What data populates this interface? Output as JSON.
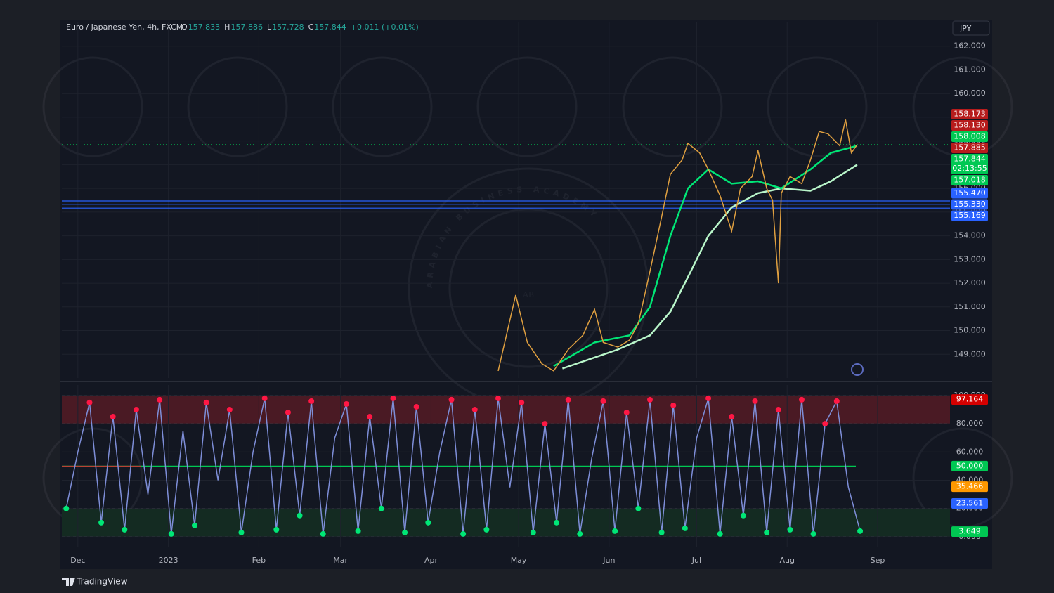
{
  "header": {
    "symbol": "Euro / Japanese Yen, 4h, FXCM",
    "ohlc": [
      {
        "key": "O",
        "value": "157.833"
      },
      {
        "key": "H",
        "value": "157.886"
      },
      {
        "key": "L",
        "value": "157.728"
      },
      {
        "key": "C",
        "value": "157.844"
      }
    ],
    "change": "+0.011 (+0.01%)",
    "currency": "JPY"
  },
  "footer": "TradingView",
  "watermark": {
    "name": "ARABIAN BUSINESS ACADEMY",
    "initials": "AB"
  },
  "chart_data": [
    {
      "type": "line",
      "x": [
        144,
        150,
        154,
        159,
        163,
        168,
        173,
        177,
        180,
        185,
        189,
        192,
        196,
        200,
        203,
        207,
        209,
        213,
        216,
        220,
        224,
        227,
        231,
        233,
        236,
        238,
        240,
        241,
        244,
        248,
        251,
        254,
        257,
        261,
        263,
        265,
        267
      ],
      "series": [
        {
          "color": "#e0a040",
          "values": [
            148.3,
            151.5,
            149.5,
            148.6,
            148.3,
            149.2,
            149.8,
            150.9,
            149.5,
            149.3,
            149.6,
            150.3,
            152.5,
            154.8,
            156.6,
            157.2,
            157.9,
            157.5,
            156.8,
            155.7,
            154.2,
            156.0,
            156.5,
            157.6,
            156.0,
            155.5,
            152.0,
            155.8,
            156.5,
            156.2,
            157.2,
            158.4,
            158.3,
            157.8,
            158.9,
            157.5,
            157.844
          ]
        }
      ],
      "ma": [
        {
          "color": "#b9f6ca",
          "x": [
            166,
            185,
            196,
            203,
            210,
            216,
            224,
            233,
            241,
            251,
            258,
            267
          ],
          "values": [
            148.4,
            149.2,
            149.8,
            150.8,
            152.5,
            154.0,
            155.2,
            155.8,
            156.0,
            155.9,
            156.3,
            157.0
          ]
        },
        {
          "color": "#00e676",
          "x": [
            163,
            177,
            189,
            196,
            203,
            209,
            216,
            224,
            233,
            241,
            251,
            258,
            267
          ],
          "values": [
            148.5,
            149.5,
            149.8,
            151.0,
            154.0,
            156.0,
            156.8,
            156.2,
            156.3,
            156.0,
            156.8,
            157.5,
            157.8
          ]
        }
      ],
      "xlim": [
        -5.5,
        298.8
      ],
      "xticks": [
        {
          "value": 0,
          "label": "Dec"
        },
        {
          "value": 31,
          "label": "2023"
        },
        {
          "value": 62,
          "label": "Feb"
        },
        {
          "value": 90,
          "label": "Mar"
        },
        {
          "value": 121,
          "label": "Apr"
        },
        {
          "value": 151,
          "label": "May"
        },
        {
          "value": 182,
          "label": "Jun"
        },
        {
          "value": 212,
          "label": "Jul"
        },
        {
          "value": 243,
          "label": "Aug"
        },
        {
          "value": 274,
          "label": "Sep"
        }
      ],
      "ylim": [
        148,
        163
      ],
      "yticks": [
        {
          "value": 149,
          "label": "149.000"
        },
        {
          "value": 150,
          "label": "150.000"
        },
        {
          "value": 151,
          "label": "151.000"
        },
        {
          "value": 152,
          "label": "152.000"
        },
        {
          "value": 153,
          "label": "153.000"
        },
        {
          "value": 154,
          "label": "154.000"
        },
        {
          "value": 155,
          "label": "155.000"
        },
        {
          "value": 156,
          "label": "156.000"
        },
        {
          "value": 157,
          "label": "157.000"
        },
        {
          "value": 158,
          "label": "158.000"
        },
        {
          "value": 159,
          "label": "159.000"
        },
        {
          "value": 160,
          "label": "160.000"
        },
        {
          "value": 161,
          "label": "161.000"
        },
        {
          "value": 162,
          "label": "162.000"
        }
      ],
      "grid": true,
      "price_labels": [
        {
          "value": 158.173,
          "label": "158.173",
          "color": "#b71c1c"
        },
        {
          "value": 158.13,
          "label": "158.130",
          "color": "#b71c1c"
        },
        {
          "value": 158.008,
          "label": "158.008",
          "color": "#00c853"
        },
        {
          "value": 157.885,
          "label": "157.885",
          "color": "#b71c1c"
        },
        {
          "value": 157.844,
          "label": "157.844",
          "color": "#00c853",
          "countdown": "02:13:55",
          "line": "dotted"
        },
        {
          "value": 157.018,
          "label": "157.018",
          "color": "#00c853"
        },
        {
          "value": 155.47,
          "label": "155.470",
          "color": "#2962ff",
          "line": "solid"
        },
        {
          "value": 155.33,
          "label": "155.330",
          "color": "#2962ff",
          "line": "solid"
        },
        {
          "value": 155.169,
          "label": "155.169",
          "color": "#2962ff",
          "line": "solid"
        }
      ]
    },
    {
      "type": "line",
      "x": [
        -4,
        0,
        4,
        8,
        12,
        16,
        20,
        24,
        28,
        32,
        36,
        40,
        44,
        48,
        52,
        56,
        60,
        64,
        68,
        72,
        76,
        80,
        84,
        88,
        92,
        96,
        100,
        104,
        108,
        112,
        116,
        120,
        124,
        128,
        132,
        136,
        140,
        144,
        148,
        152,
        156,
        160,
        164,
        168,
        172,
        176,
        180,
        184,
        188,
        192,
        196,
        200,
        204,
        208,
        212,
        216,
        220,
        224,
        228,
        232,
        236,
        240,
        244,
        248,
        252,
        256,
        260,
        264,
        268
      ],
      "series": [
        {
          "color": "#7e8ed8",
          "values": [
            20,
            60,
            95,
            10,
            85,
            5,
            90,
            30,
            97,
            2,
            75,
            8,
            95,
            40,
            90,
            3,
            60,
            98,
            5,
            88,
            15,
            96,
            2,
            70,
            94,
            4,
            85,
            20,
            98,
            3,
            92,
            10,
            60,
            97,
            2,
            90,
            5,
            98,
            35,
            95,
            3,
            80,
            10,
            97,
            2,
            55,
            96,
            4,
            88,
            20,
            97,
            3,
            93,
            6,
            70,
            98,
            2,
            85,
            15,
            96,
            3,
            90,
            5,
            97,
            2,
            80,
            96,
            35,
            4
          ]
        }
      ],
      "dot_colors": {
        "peak": "#ff1744",
        "trough": "#00e676"
      },
      "xlim": [
        -5.5,
        298.8
      ],
      "xticks": [
        {
          "value": 0,
          "label": "Dec"
        },
        {
          "value": 31,
          "label": "2023"
        },
        {
          "value": 62,
          "label": "Feb"
        },
        {
          "value": 90,
          "label": "Mar"
        },
        {
          "value": 121,
          "label": "Apr"
        },
        {
          "value": 151,
          "label": "May"
        },
        {
          "value": 182,
          "label": "Jun"
        },
        {
          "value": 212,
          "label": "Jul"
        },
        {
          "value": 243,
          "label": "Aug"
        },
        {
          "value": 274,
          "label": "Sep"
        }
      ],
      "ylim": [
        -7,
        107.4
      ],
      "yticks": [
        {
          "value": 0,
          "label": "0.000"
        },
        {
          "value": 20,
          "label": "20.000"
        },
        {
          "value": 40,
          "label": "40.000"
        },
        {
          "value": 60,
          "label": "60.000"
        },
        {
          "value": 80,
          "label": "80.000"
        },
        {
          "value": 100,
          "label": "100.000"
        }
      ],
      "grid": true,
      "bands": [
        {
          "from": 80,
          "to": 100,
          "color": "#4a1a24"
        },
        {
          "from": 0,
          "to": 20,
          "color": "#142b22"
        }
      ],
      "price_labels": [
        {
          "value": 97.164,
          "label": "97.164",
          "color": "#d50000"
        },
        {
          "value": 50,
          "label": "50.000",
          "color": "#00c853",
          "line": "solid"
        },
        {
          "value": 35.466,
          "label": "35.466",
          "color": "#ff9800"
        },
        {
          "value": 23.561,
          "label": "23.561",
          "color": "#2962ff"
        },
        {
          "value": 3.649,
          "label": "3.649",
          "color": "#00c853"
        }
      ]
    }
  ]
}
